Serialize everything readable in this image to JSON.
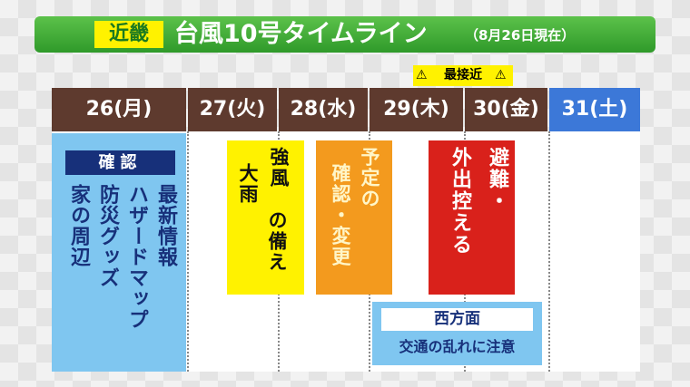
{
  "region": "近畿",
  "title": "台風10号タイムライン",
  "subtitle": "（8月26日現在）",
  "peak_label": "最接近",
  "days": [
    "26(月)",
    "27(火)",
    "28(水)",
    "29(木)",
    "30(金)",
    "31(土)"
  ],
  "check_box": {
    "label": "確認",
    "items": [
      "最新情報",
      "ハザードマップ",
      "防災グッズ",
      "家の周辺"
    ]
  },
  "prepare_box": {
    "lines": [
      "強風",
      "大雨",
      "の備え"
    ]
  },
  "schedule_box": {
    "lines": [
      "予定の",
      "確認・変更"
    ]
  },
  "evacuate_box": {
    "lines": [
      "避難・",
      "外出控える"
    ]
  },
  "traffic_box": {
    "area": "西方面",
    "text": "交通の乱れに注意"
  }
}
